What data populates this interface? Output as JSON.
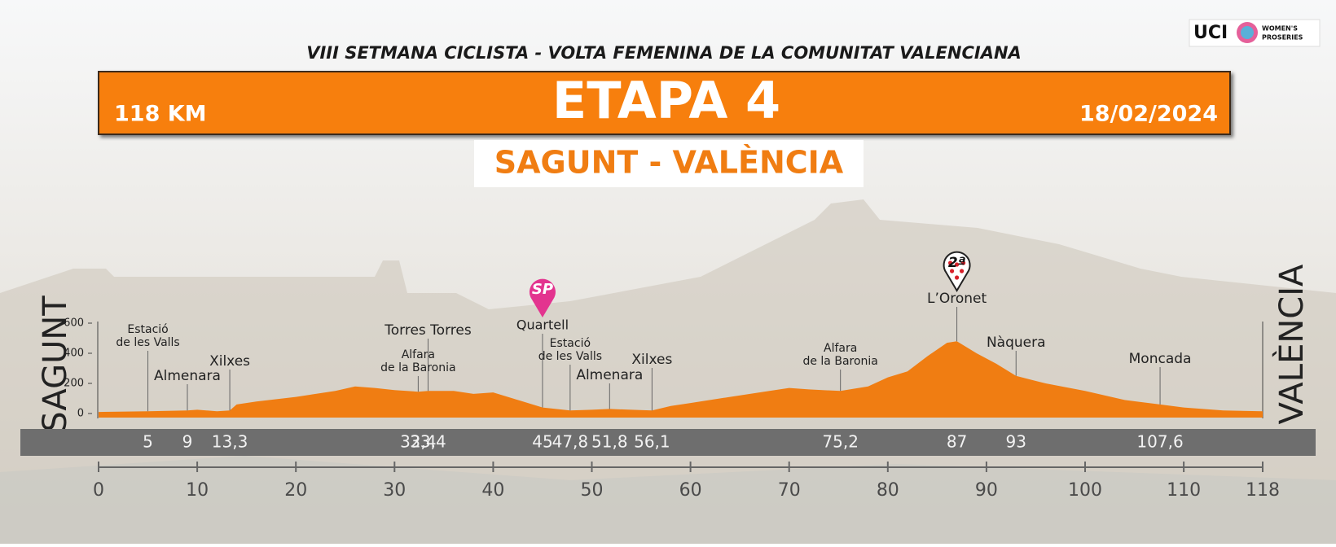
{
  "chart_data": {
    "type": "area",
    "event": "VIII SETMANA CICLISTA - VOLTA FEMENINA DE LA COMUNITAT VALENCIANA",
    "title": "ETAPA 4",
    "distance": "118 KM",
    "date": "18/02/2024",
    "subtitle": "SAGUNT - VALÈNCIA",
    "logo": {
      "text": "UCI",
      "series": [
        "WOMEN'S",
        "PROSERIES"
      ]
    },
    "start": "SAGUNT",
    "finish": "VALÈNCIA",
    "color": "#f07d12",
    "x": [
      0,
      5,
      9,
      10,
      12,
      13.3,
      14,
      16,
      20,
      24,
      26,
      28,
      30,
      32.4,
      33.4,
      36,
      38,
      40,
      42,
      44,
      45,
      47.8,
      50,
      51.8,
      54,
      56.1,
      58,
      60,
      64,
      68,
      70,
      72,
      75.2,
      78,
      80,
      82,
      84,
      86,
      87,
      89,
      91,
      93,
      96,
      100,
      104,
      107.6,
      110,
      114,
      118
    ],
    "values": [
      10,
      15,
      20,
      25,
      15,
      20,
      60,
      80,
      110,
      150,
      180,
      170,
      155,
      145,
      150,
      150,
      130,
      140,
      100,
      60,
      40,
      20,
      25,
      30,
      25,
      20,
      50,
      70,
      110,
      150,
      170,
      160,
      150,
      180,
      240,
      280,
      380,
      470,
      480,
      400,
      330,
      250,
      200,
      150,
      90,
      60,
      40,
      20,
      15
    ],
    "xlim": [
      0,
      118
    ],
    "ylim": [
      0,
      600
    ],
    "xticks": [
      0,
      10,
      20,
      30,
      40,
      50,
      60,
      70,
      80,
      90,
      100,
      110,
      118
    ],
    "yticks": [
      0,
      200,
      400,
      600
    ],
    "waypoints": [
      {
        "km": 5,
        "name": [
          "Estació",
          "de les Valls"
        ]
      },
      {
        "km": 9,
        "name": [
          "Almenara"
        ]
      },
      {
        "km": {
          "value": 13.3,
          "label": "13,3"
        },
        "name": [
          "Xilxes"
        ]
      },
      {
        "km": {
          "value": 32.4,
          "label": "32,4"
        },
        "name": [
          "Alfara",
          "de la Baronia"
        ]
      },
      {
        "km": {
          "value": 33.4,
          "label": "33,4"
        },
        "name": [
          "Torres Torres"
        ]
      },
      {
        "km": 45,
        "name": [
          "Quartell"
        ],
        "marker": "SP"
      },
      {
        "km": {
          "value": 47.8,
          "label": "47,8"
        },
        "name": [
          "Estació",
          "de les Valls"
        ]
      },
      {
        "km": {
          "value": 51.8,
          "label": "51,8"
        },
        "name": [
          "Almenara"
        ]
      },
      {
        "km": {
          "value": 56.1,
          "label": "56,1"
        },
        "name": [
          "Xilxes"
        ]
      },
      {
        "km": {
          "value": 75.2,
          "label": "75,2"
        },
        "name": [
          "Alfara",
          "de la Baronia"
        ]
      },
      {
        "km": 87,
        "name": [
          "L’Oronet"
        ],
        "marker": "2ª"
      },
      {
        "km": 93,
        "name": [
          "Nàquera"
        ]
      },
      {
        "km": {
          "value": 107.6,
          "label": "107,6"
        },
        "name": [
          "Moncada"
        ]
      }
    ]
  }
}
